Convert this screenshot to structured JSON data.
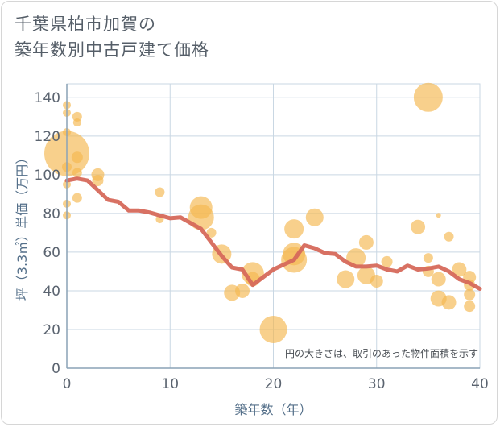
{
  "title_lines": [
    "千葉県柏市加賀の",
    "築年数別中古戸建て価格"
  ],
  "colors": {
    "bubble": "#f5b74e",
    "line": "#d6695b",
    "grid": "#c9d7e3",
    "axis": "#8aa2b6",
    "tick_text": "#5b6470",
    "label_text": "#55708a"
  },
  "chart_data": {
    "type": "scatter",
    "title": "千葉県柏市加賀の築年数別中古戸建て価格",
    "xlabel": "築年数（年）",
    "ylabel": "坪（3.3㎡）単価（万円）",
    "xlim": [
      0,
      40
    ],
    "ylim": [
      0,
      147
    ],
    "x_ticks": [
      0,
      10,
      20,
      30,
      40
    ],
    "y_ticks": [
      0,
      20,
      40,
      60,
      80,
      100,
      120,
      140
    ],
    "grid": true,
    "note": "円の大きさは、取引のあった物件面積を示す",
    "bubbles": [
      {
        "x": 0,
        "y": 136,
        "s": 5
      },
      {
        "x": 0,
        "y": 132,
        "s": 5
      },
      {
        "x": 0,
        "y": 122,
        "s": 5
      },
      {
        "x": 0,
        "y": 111,
        "s": 28
      },
      {
        "x": 0,
        "y": 104,
        "s": 6
      },
      {
        "x": 0,
        "y": 95,
        "s": 5
      },
      {
        "x": 0,
        "y": 85,
        "s": 5
      },
      {
        "x": 0,
        "y": 79,
        "s": 5
      },
      {
        "x": 1,
        "y": 130,
        "s": 6
      },
      {
        "x": 1,
        "y": 127,
        "s": 5
      },
      {
        "x": 1,
        "y": 109,
        "s": 7
      },
      {
        "x": 1,
        "y": 101,
        "s": 6
      },
      {
        "x": 1,
        "y": 88,
        "s": 6
      },
      {
        "x": 3,
        "y": 100,
        "s": 8
      },
      {
        "x": 3,
        "y": 97,
        "s": 7
      },
      {
        "x": 9,
        "y": 91,
        "s": 6
      },
      {
        "x": 9,
        "y": 77,
        "s": 5
      },
      {
        "x": 13,
        "y": 83,
        "s": 14
      },
      {
        "x": 13,
        "y": 78,
        "s": 16
      },
      {
        "x": 14,
        "y": 70,
        "s": 6
      },
      {
        "x": 15,
        "y": 59,
        "s": 12
      },
      {
        "x": 16,
        "y": 39,
        "s": 10
      },
      {
        "x": 17,
        "y": 40,
        "s": 9
      },
      {
        "x": 18,
        "y": 49,
        "s": 14
      },
      {
        "x": 18,
        "y": 46,
        "s": 9
      },
      {
        "x": 20,
        "y": 20,
        "s": 17
      },
      {
        "x": 22,
        "y": 72,
        "s": 12
      },
      {
        "x": 22,
        "y": 59,
        "s": 14
      },
      {
        "x": 22,
        "y": 56,
        "s": 16
      },
      {
        "x": 24,
        "y": 78,
        "s": 11
      },
      {
        "x": 27,
        "y": 46,
        "s": 11
      },
      {
        "x": 28,
        "y": 57,
        "s": 12
      },
      {
        "x": 29,
        "y": 65,
        "s": 9
      },
      {
        "x": 29,
        "y": 48,
        "s": 11
      },
      {
        "x": 30,
        "y": 45,
        "s": 8
      },
      {
        "x": 31,
        "y": 55,
        "s": 7
      },
      {
        "x": 34,
        "y": 73,
        "s": 9
      },
      {
        "x": 35,
        "y": 140,
        "s": 18
      },
      {
        "x": 35,
        "y": 57,
        "s": 6
      },
      {
        "x": 35,
        "y": 50,
        "s": 7
      },
      {
        "x": 36,
        "y": 79,
        "s": 3
      },
      {
        "x": 36,
        "y": 46,
        "s": 9
      },
      {
        "x": 36,
        "y": 36,
        "s": 10
      },
      {
        "x": 37,
        "y": 68,
        "s": 6
      },
      {
        "x": 37,
        "y": 34,
        "s": 9
      },
      {
        "x": 38,
        "y": 51,
        "s": 9
      },
      {
        "x": 39,
        "y": 47,
        "s": 8
      },
      {
        "x": 39,
        "y": 43,
        "s": 7
      },
      {
        "x": 39,
        "y": 38,
        "s": 7
      },
      {
        "x": 39,
        "y": 32,
        "s": 7
      }
    ],
    "line": {
      "x": [
        0,
        1,
        2,
        3,
        4,
        5,
        6,
        7,
        8,
        9,
        10,
        11,
        12,
        13,
        14,
        15,
        16,
        17,
        18,
        19,
        20,
        21,
        22,
        23,
        24,
        25,
        26,
        27,
        28,
        29,
        30,
        31,
        32,
        33,
        34,
        35,
        36,
        37,
        38,
        39,
        40
      ],
      "y": [
        97,
        98,
        97,
        92,
        87,
        86,
        81.5,
        81.5,
        80.5,
        79,
        77.5,
        78,
        75,
        72,
        65,
        58,
        52,
        51,
        43,
        47,
        51,
        53.5,
        56,
        63.5,
        62,
        59.5,
        59,
        55,
        52.5,
        52.5,
        53,
        51,
        50,
        53,
        51,
        51.5,
        52.5,
        50,
        46,
        44,
        41
      ]
    }
  }
}
